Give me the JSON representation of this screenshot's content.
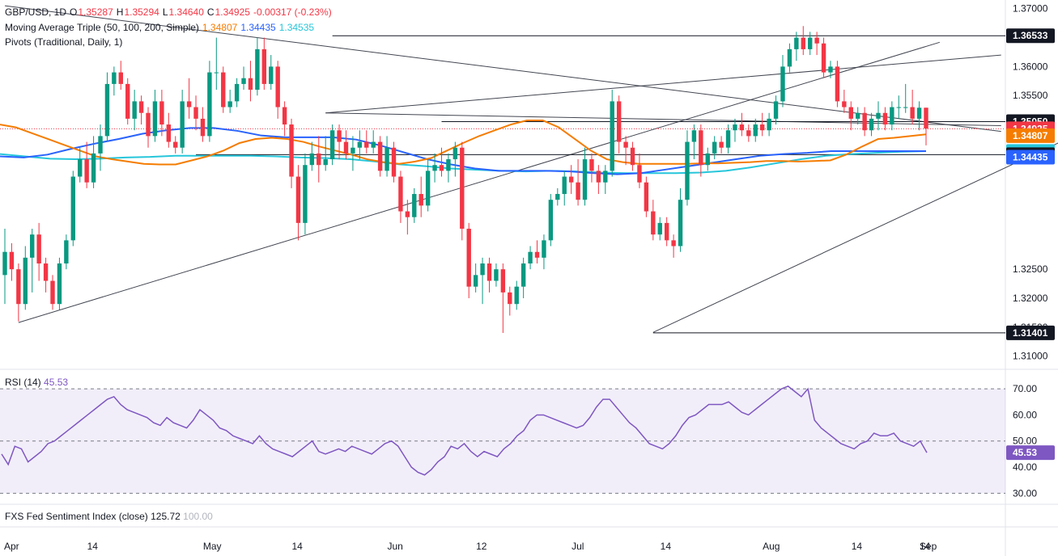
{
  "legend": {
    "symbol": "GBP/USD, 1D",
    "o_label": "O",
    "o": "1.35287",
    "h_label": "H",
    "h": "1.35294",
    "l_label": "L",
    "l": "1.34640",
    "c_label": "C",
    "c": "1.34925",
    "change": "-0.00317 (-0.23%)",
    "ma_label": "Moving Average Triple (50, 100, 200, Simple)",
    "ma50": "1.34807",
    "ma100": "1.34435",
    "ma200": "1.34535",
    "pivots_label": "Pivots (Traditional, Daily, 1)",
    "rsi_label": "RSI (14)",
    "rsi_value": "45.53",
    "fxs_label": "FXS Fed Sentiment Index (close)",
    "fxs_value": "125.72",
    "fxs_value2": "100.00"
  },
  "colors": {
    "up": "#089981",
    "down": "#f23645",
    "ma50": "#f57c00",
    "ma100": "#2962ff",
    "ma200": "#26c6da",
    "rsi": "#7e57c2"
  },
  "chart_data": {
    "type": "candlestick",
    "y_ticks": [
      "1.37000",
      "1.36000",
      "1.35500",
      "1.35000",
      "1.32500",
      "1.32000",
      "1.31500",
      "1.31000"
    ],
    "y_range": [
      1.308,
      1.3715
    ],
    "x_ticks": [
      "Apr",
      "14",
      "May",
      "14",
      "Jun",
      "12",
      "Jul",
      "14",
      "Aug",
      "14",
      "Sep",
      "14"
    ],
    "price_labels": [
      {
        "value": 1.36533,
        "text": "1.36533",
        "bg": "#131722"
      },
      {
        "value": 1.3505,
        "text": "1.35050",
        "bg": "#131722"
      },
      {
        "value": 1.34925,
        "text": "1.34925",
        "bg": "#f23645"
      },
      {
        "value": 1.34807,
        "text": "1.34807",
        "bg": "#f57c00"
      },
      {
        "value": 1.34535,
        "text": "1.34535",
        "bg": "#26c6da"
      },
      {
        "value": 1.34479,
        "text": "1.34479",
        "bg": "#131722"
      },
      {
        "value": 1.34435,
        "text": "1.34435",
        "bg": "#2962ff"
      },
      {
        "value": 1.31401,
        "text": "1.31401",
        "bg": "#131722"
      }
    ],
    "candles": [
      [
        1.324,
        1.332,
        1.319,
        1.328
      ],
      [
        1.328,
        1.3295,
        1.323,
        1.325
      ],
      [
        1.325,
        1.326,
        1.316,
        1.319
      ],
      [
        1.319,
        1.329,
        1.318,
        1.327
      ],
      [
        1.327,
        1.332,
        1.321,
        1.331
      ],
      [
        1.331,
        1.333,
        1.323,
        1.326
      ],
      [
        1.326,
        1.327,
        1.321,
        1.323
      ],
      [
        1.323,
        1.324,
        1.318,
        1.319
      ],
      [
        1.319,
        1.327,
        1.318,
        1.326
      ],
      [
        1.326,
        1.331,
        1.325,
        1.33
      ],
      [
        1.33,
        1.342,
        1.329,
        1.341
      ],
      [
        1.341,
        1.346,
        1.34,
        1.344
      ],
      [
        1.344,
        1.347,
        1.339,
        1.34
      ],
      [
        1.34,
        1.348,
        1.339,
        1.345
      ],
      [
        1.345,
        1.35,
        1.342,
        1.348
      ],
      [
        1.348,
        1.359,
        1.347,
        1.357
      ],
      [
        1.357,
        1.36,
        1.355,
        1.359
      ],
      [
        1.359,
        1.361,
        1.356,
        1.357
      ],
      [
        1.357,
        1.358,
        1.35,
        1.351
      ],
      [
        1.351,
        1.356,
        1.349,
        1.354
      ],
      [
        1.354,
        1.355,
        1.35,
        1.352
      ],
      [
        1.352,
        1.353,
        1.346,
        1.348
      ],
      [
        1.348,
        1.356,
        1.347,
        1.354
      ],
      [
        1.354,
        1.356,
        1.348,
        1.35
      ],
      [
        1.35,
        1.352,
        1.346,
        1.347
      ],
      [
        1.347,
        1.348,
        1.345,
        1.346
      ],
      [
        1.346,
        1.356,
        1.345,
        1.354
      ],
      [
        1.354,
        1.358,
        1.351,
        1.353
      ],
      [
        1.353,
        1.355,
        1.349,
        1.351
      ],
      [
        1.351,
        1.353,
        1.347,
        1.348
      ],
      [
        1.348,
        1.361,
        1.347,
        1.359
      ],
      [
        1.359,
        1.365,
        1.356,
        1.359
      ],
      [
        1.359,
        1.36,
        1.352,
        1.353
      ],
      [
        1.353,
        1.356,
        1.352,
        1.354
      ],
      [
        1.354,
        1.358,
        1.353,
        1.357
      ],
      [
        1.357,
        1.36,
        1.356,
        1.358
      ],
      [
        1.358,
        1.361,
        1.354,
        1.356
      ],
      [
        1.356,
        1.365,
        1.355,
        1.363
      ],
      [
        1.363,
        1.365,
        1.356,
        1.357
      ],
      [
        1.357,
        1.362,
        1.356,
        1.36
      ],
      [
        1.36,
        1.361,
        1.351,
        1.353
      ],
      [
        1.353,
        1.354,
        1.348,
        1.35
      ],
      [
        1.35,
        1.351,
        1.339,
        1.341
      ],
      [
        1.341,
        1.343,
        1.33,
        1.333
      ],
      [
        1.333,
        1.345,
        1.331,
        1.343
      ],
      [
        1.343,
        1.347,
        1.342,
        1.345
      ],
      [
        1.345,
        1.348,
        1.34,
        1.343
      ],
      [
        1.343,
        1.348,
        1.342,
        1.344
      ],
      [
        1.344,
        1.35,
        1.343,
        1.349
      ],
      [
        1.349,
        1.35,
        1.344,
        1.347
      ],
      [
        1.347,
        1.349,
        1.344,
        1.345
      ],
      [
        1.345,
        1.348,
        1.342,
        1.346
      ],
      [
        1.346,
        1.349,
        1.344,
        1.347
      ],
      [
        1.347,
        1.349,
        1.345,
        1.346
      ],
      [
        1.346,
        1.349,
        1.345,
        1.347
      ],
      [
        1.347,
        1.348,
        1.341,
        1.342
      ],
      [
        1.342,
        1.348,
        1.341,
        1.346
      ],
      [
        1.346,
        1.347,
        1.34,
        1.341
      ],
      [
        1.341,
        1.342,
        1.333,
        1.335
      ],
      [
        1.335,
        1.337,
        1.331,
        1.334
      ],
      [
        1.334,
        1.339,
        1.333,
        1.338
      ],
      [
        1.338,
        1.341,
        1.334,
        1.336
      ],
      [
        1.336,
        1.344,
        1.335,
        1.342
      ],
      [
        1.342,
        1.345,
        1.34,
        1.343
      ],
      [
        1.343,
        1.346,
        1.341,
        1.342
      ],
      [
        1.342,
        1.345,
        1.34,
        1.344
      ],
      [
        1.344,
        1.347,
        1.341,
        1.346
      ],
      [
        1.346,
        1.347,
        1.33,
        1.332
      ],
      [
        1.332,
        1.333,
        1.32,
        1.322
      ],
      [
        1.322,
        1.326,
        1.321,
        1.324
      ],
      [
        1.324,
        1.327,
        1.319,
        1.326
      ],
      [
        1.326,
        1.327,
        1.321,
        1.323
      ],
      [
        1.323,
        1.326,
        1.322,
        1.325
      ],
      [
        1.325,
        1.326,
        1.314,
        1.321
      ],
      [
        1.321,
        1.322,
        1.317,
        1.319
      ],
      [
        1.319,
        1.323,
        1.318,
        1.322
      ],
      [
        1.322,
        1.327,
        1.32,
        1.326
      ],
      [
        1.326,
        1.329,
        1.325,
        1.328
      ],
      [
        1.328,
        1.33,
        1.326,
        1.327
      ],
      [
        1.327,
        1.331,
        1.325,
        1.33
      ],
      [
        1.33,
        1.338,
        1.329,
        1.337
      ],
      [
        1.337,
        1.339,
        1.336,
        1.338
      ],
      [
        1.338,
        1.342,
        1.336,
        1.341
      ],
      [
        1.341,
        1.343,
        1.338,
        1.34
      ],
      [
        1.34,
        1.344,
        1.336,
        1.337
      ],
      [
        1.337,
        1.346,
        1.336,
        1.344
      ],
      [
        1.344,
        1.345,
        1.34,
        1.342
      ],
      [
        1.342,
        1.343,
        1.338,
        1.34
      ],
      [
        1.34,
        1.343,
        1.338,
        1.342
      ],
      [
        1.342,
        1.356,
        1.341,
        1.354
      ],
      [
        1.354,
        1.355,
        1.345,
        1.347
      ],
      [
        1.347,
        1.348,
        1.343,
        1.346
      ],
      [
        1.346,
        1.347,
        1.342,
        1.343
      ],
      [
        1.343,
        1.345,
        1.339,
        1.34
      ],
      [
        1.34,
        1.341,
        1.334,
        1.335
      ],
      [
        1.335,
        1.337,
        1.33,
        1.331
      ],
      [
        1.331,
        1.334,
        1.33,
        1.333
      ],
      [
        1.333,
        1.334,
        1.329,
        1.33
      ],
      [
        1.33,
        1.331,
        1.327,
        1.329
      ],
      [
        1.329,
        1.339,
        1.328,
        1.337
      ],
      [
        1.337,
        1.349,
        1.336,
        1.347
      ],
      [
        1.347,
        1.35,
        1.344,
        1.349
      ],
      [
        1.349,
        1.35,
        1.341,
        1.343
      ],
      [
        1.343,
        1.346,
        1.342,
        1.345
      ],
      [
        1.345,
        1.348,
        1.344,
        1.347
      ],
      [
        1.347,
        1.348,
        1.345,
        1.346
      ],
      [
        1.346,
        1.35,
        1.345,
        1.349
      ],
      [
        1.349,
        1.351,
        1.347,
        1.35
      ],
      [
        1.35,
        1.352,
        1.348,
        1.349
      ],
      [
        1.349,
        1.35,
        1.347,
        1.348
      ],
      [
        1.348,
        1.351,
        1.347,
        1.35
      ],
      [
        1.35,
        1.352,
        1.348,
        1.349
      ],
      [
        1.349,
        1.352,
        1.348,
        1.351
      ],
      [
        1.351,
        1.355,
        1.35,
        1.354
      ],
      [
        1.354,
        1.362,
        1.353,
        1.36
      ],
      [
        1.36,
        1.364,
        1.359,
        1.363
      ],
      [
        1.363,
        1.366,
        1.361,
        1.365
      ],
      [
        1.365,
        1.367,
        1.362,
        1.363
      ],
      [
        1.363,
        1.366,
        1.362,
        1.365
      ],
      [
        1.365,
        1.366,
        1.362,
        1.364
      ],
      [
        1.364,
        1.365,
        1.358,
        1.359
      ],
      [
        1.359,
        1.361,
        1.358,
        1.36
      ],
      [
        1.36,
        1.361,
        1.353,
        1.354
      ],
      [
        1.354,
        1.356,
        1.352,
        1.353
      ],
      [
        1.353,
        1.354,
        1.349,
        1.351
      ],
      [
        1.351,
        1.353,
        1.35,
        1.352
      ],
      [
        1.352,
        1.353,
        1.348,
        1.349
      ],
      [
        1.349,
        1.352,
        1.348,
        1.351
      ],
      [
        1.351,
        1.354,
        1.349,
        1.352
      ],
      [
        1.352,
        1.353,
        1.349,
        1.35
      ],
      [
        1.35,
        1.354,
        1.349,
        1.353
      ],
      [
        1.353,
        1.355,
        1.351,
        1.353
      ],
      [
        1.353,
        1.357,
        1.352,
        1.353
      ],
      [
        1.353,
        1.356,
        1.35,
        1.351
      ],
      [
        1.351,
        1.354,
        1.349,
        1.3529
      ],
      [
        1.3529,
        1.3529,
        1.3464,
        1.3493
      ]
    ],
    "ma50": [
      1.35,
      1.3495,
      1.3485,
      1.3475,
      1.3465,
      1.3455,
      1.3445,
      1.344,
      1.3436,
      1.3432,
      1.3431,
      1.3431,
      1.3438,
      1.3445,
      1.3455,
      1.3468,
      1.3475,
      1.3477,
      1.3475,
      1.347,
      1.3462,
      1.3455,
      1.3448,
      1.344,
      1.3435,
      1.3432,
      1.3436,
      1.3442,
      1.3455,
      1.3468,
      1.348,
      1.349,
      1.35,
      1.3507,
      1.3507,
      1.3495,
      1.3475,
      1.3455,
      1.344,
      1.3435,
      1.3432,
      1.3432,
      1.3432,
      1.3432,
      1.3433,
      1.3433,
      1.3434,
      1.3435,
      1.3437,
      1.3437,
      1.3436,
      1.3437,
      1.3438,
      1.3448,
      1.3462,
      1.3475,
      1.3477,
      1.348,
      1.3483
    ],
    "ma100": [
      1.3445,
      1.3443,
      1.3448,
      1.3458,
      1.3467,
      1.3475,
      1.3484,
      1.349,
      1.3494,
      1.3494,
      1.3489,
      1.3481,
      1.3478,
      1.3478,
      1.3478,
      1.3474,
      1.3464,
      1.3452,
      1.344,
      1.3431,
      1.3424,
      1.342,
      1.342,
      1.342,
      1.3419,
      1.3416,
      1.3414,
      1.3416,
      1.3422,
      1.3428,
      1.3434,
      1.344,
      1.3446,
      1.3449,
      1.3451,
      1.3454,
      1.3454,
      1.3454,
      1.3454,
      1.3454
    ],
    "ma200": [
      1.3449,
      1.3445,
      1.3441,
      1.344,
      1.3441,
      1.3443,
      1.3444,
      1.3446,
      1.3446,
      1.3446,
      1.3446,
      1.3445,
      1.3443,
      1.3442,
      1.344,
      1.3436,
      1.3431,
      1.3428,
      1.3424,
      1.3422,
      1.342,
      1.3419,
      1.342,
      1.3419,
      1.3417,
      1.3416,
      1.3416,
      1.3416,
      1.3417,
      1.342,
      1.3426,
      1.3433,
      1.344,
      1.3446,
      1.3449,
      1.3451,
      1.3453,
      1.3454
    ],
    "rsi": [
      45,
      41,
      48,
      47,
      42,
      44,
      46,
      49,
      50,
      52,
      54,
      56,
      58,
      60,
      62,
      64,
      66,
      67,
      64,
      62,
      61,
      60,
      59,
      57,
      56,
      59,
      57,
      56,
      55,
      58,
      62,
      60,
      58,
      55,
      54,
      52,
      51,
      50,
      49,
      52,
      49,
      47,
      46,
      45,
      44,
      46,
      48,
      50,
      46,
      45,
      46,
      47,
      46,
      48,
      47,
      46,
      45,
      47,
      49,
      50,
      48,
      44,
      40,
      38,
      37,
      39,
      42,
      44,
      48,
      47,
      49,
      46,
      44,
      46,
      45,
      44,
      47,
      49,
      52,
      54,
      58,
      60,
      60,
      59,
      58,
      57,
      56,
      55,
      56,
      59,
      63,
      66,
      66,
      63,
      60,
      57,
      55,
      52,
      49,
      48,
      47,
      49,
      52,
      56,
      59,
      60,
      62,
      64,
      64,
      64,
      65,
      63,
      61,
      60,
      62,
      64,
      66,
      68,
      70,
      71,
      69,
      67,
      70,
      58,
      55,
      53,
      51,
      49,
      48,
      47,
      49,
      50,
      53,
      52,
      52,
      53,
      50,
      49,
      48,
      50,
      45.53
    ],
    "rsi_levels": [
      70,
      50,
      30
    ],
    "rsi_ticks": [
      "70.00",
      "60.00",
      "50.00",
      "40.00",
      "30.00"
    ]
  }
}
